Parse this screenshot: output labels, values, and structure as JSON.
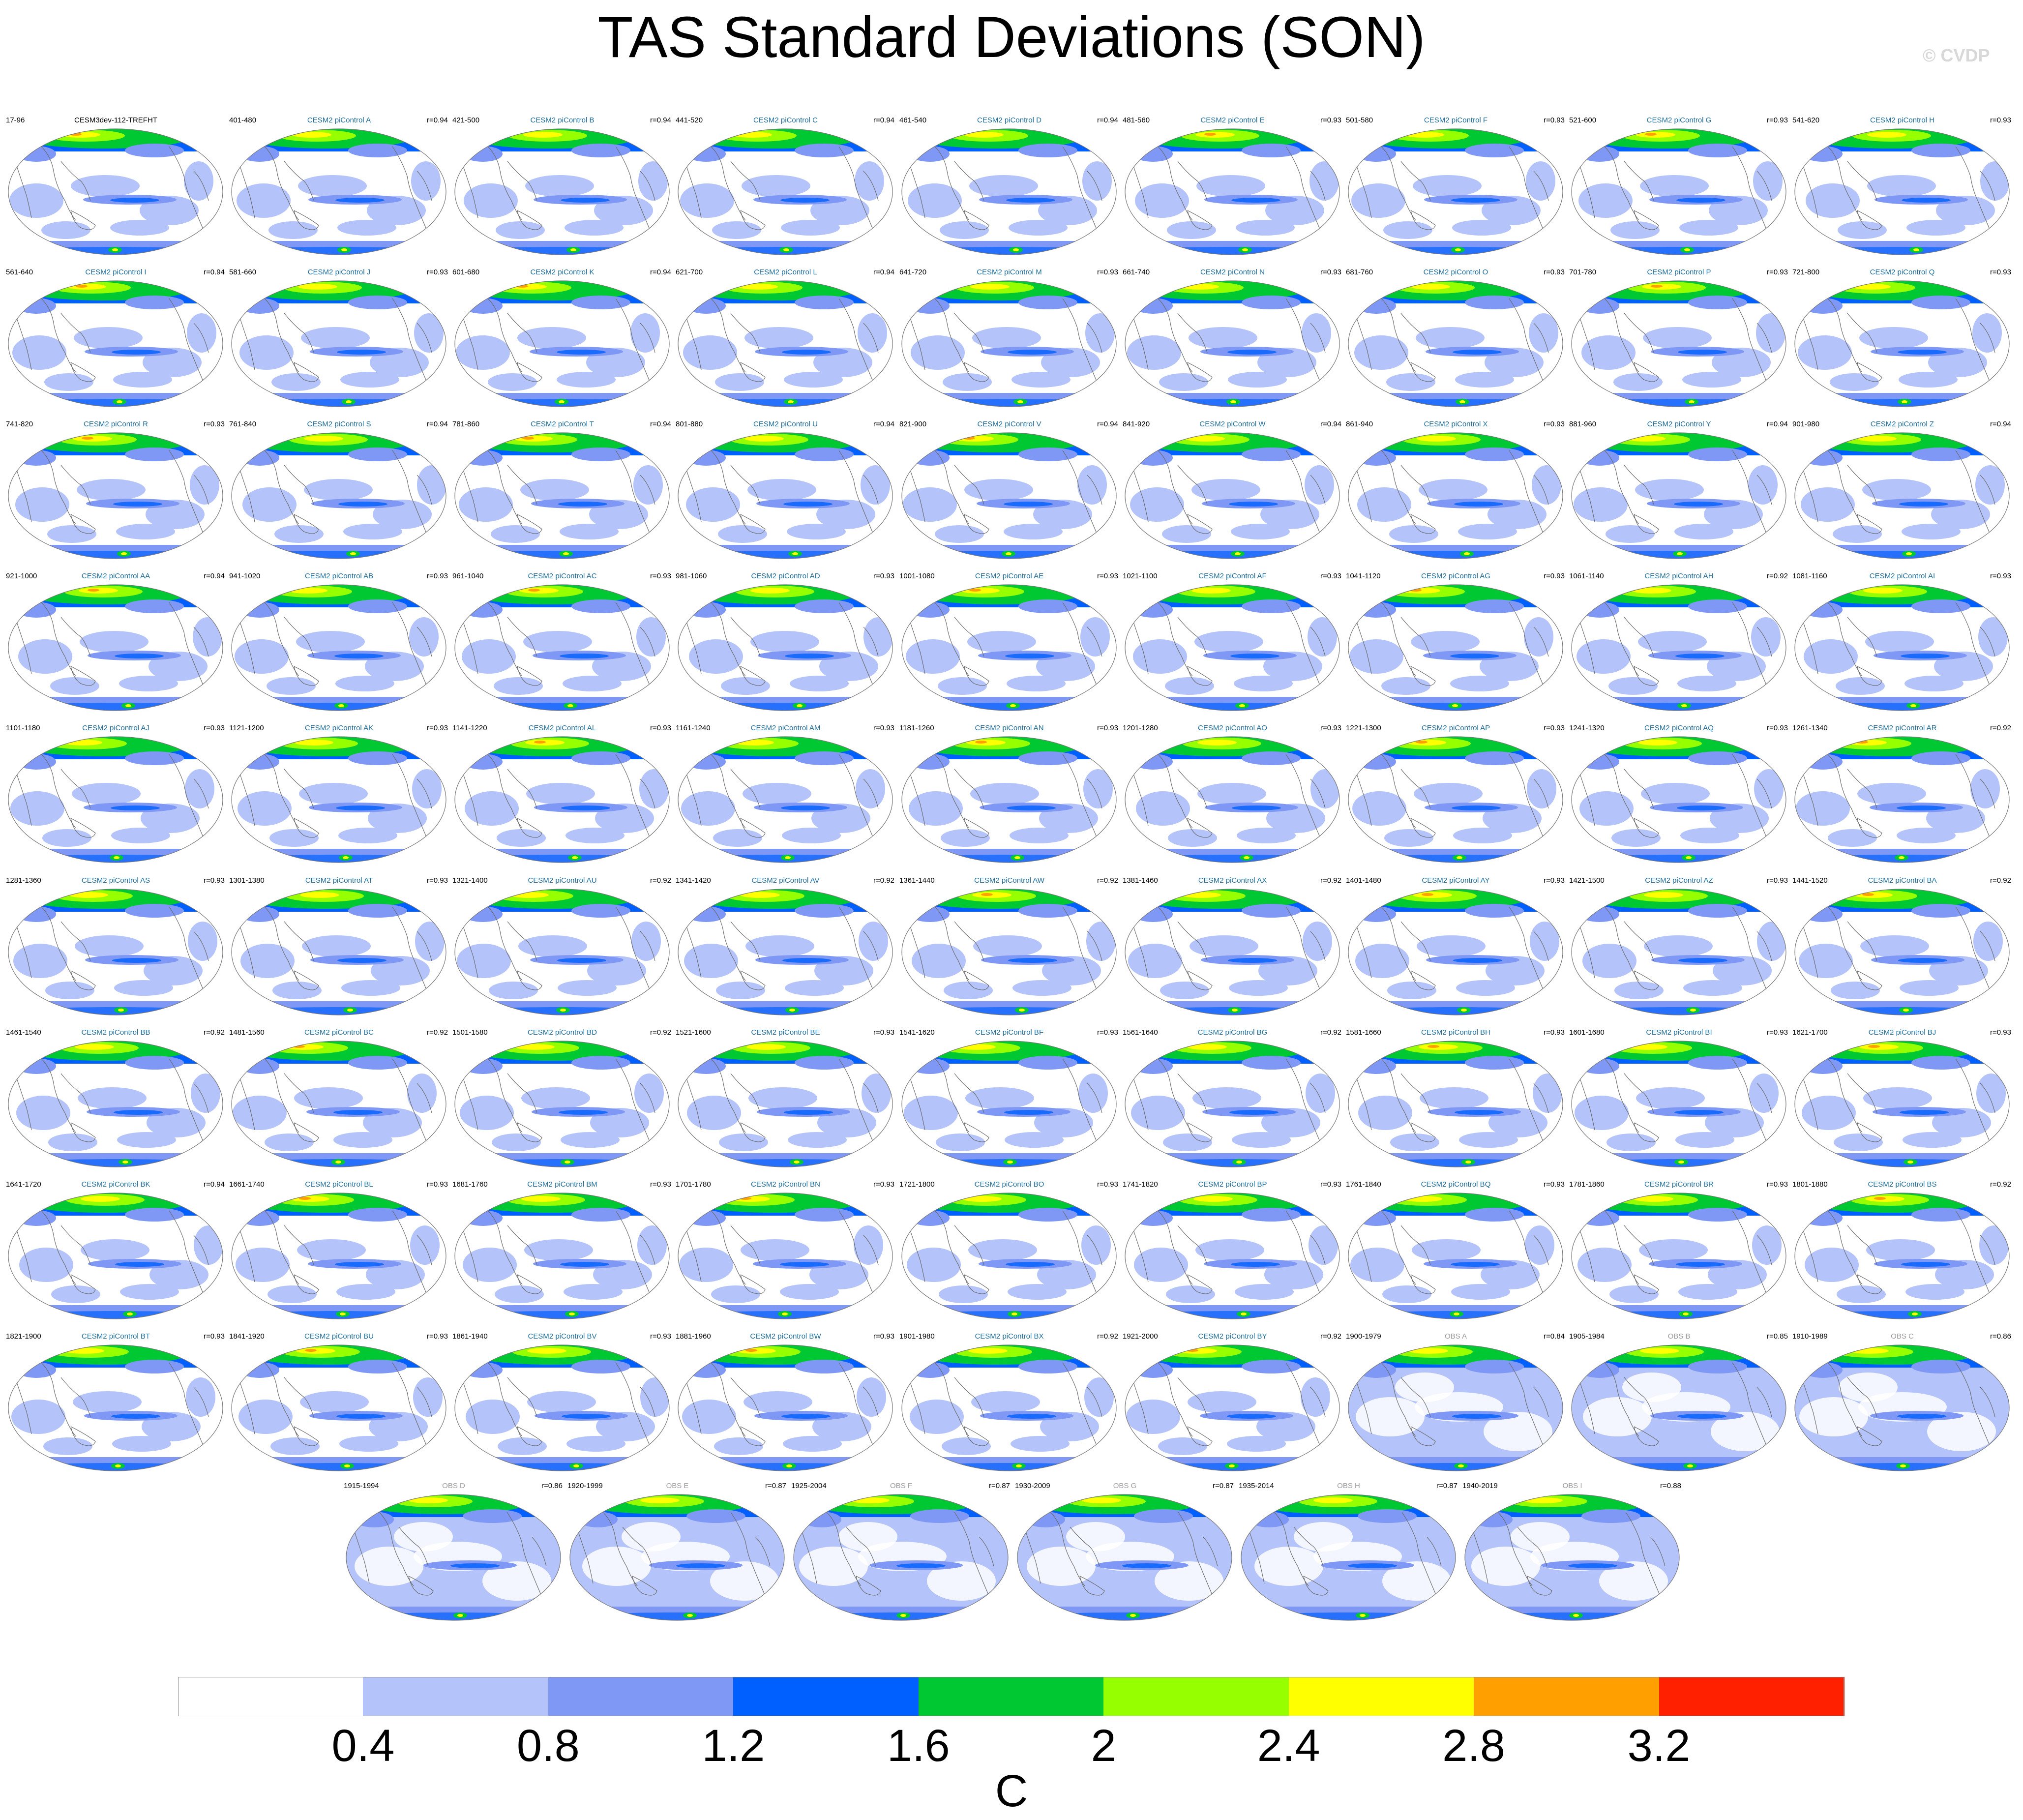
{
  "chart_data": {
    "type": "heatmap",
    "title": "TAS Standard Deviations (SON)",
    "watermark": "© CVDP",
    "colorbar": {
      "unit": "C",
      "ticks": [
        "0.4",
        "0.8",
        "1.2",
        "1.6",
        "2",
        "2.4",
        "2.8",
        "3.2"
      ],
      "levels": [
        0.4,
        0.8,
        1.2,
        1.6,
        2.0,
        2.4,
        2.8,
        3.2
      ],
      "colors": [
        "#ffffff",
        "#b4c4fa",
        "#7f98f5",
        "#0060ff",
        "#00c832",
        "#96ff00",
        "#ffff00",
        "#ffa000",
        "#ff2000"
      ]
    },
    "panels": [
      {
        "name": "CESM3dev-112-TREFHT",
        "years": "17-96",
        "r": "",
        "kind": "ref"
      },
      {
        "name": "CESM2 piControl A",
        "years": "401-480",
        "r": "r=0.94",
        "kind": "model"
      },
      {
        "name": "CESM2 piControl B",
        "years": "421-500",
        "r": "r=0.94",
        "kind": "model"
      },
      {
        "name": "CESM2 piControl C",
        "years": "441-520",
        "r": "r=0.94",
        "kind": "model"
      },
      {
        "name": "CESM2 piControl D",
        "years": "461-540",
        "r": "r=0.94",
        "kind": "model"
      },
      {
        "name": "CESM2 piControl E",
        "years": "481-560",
        "r": "r=0.93",
        "kind": "model"
      },
      {
        "name": "CESM2 piControl F",
        "years": "501-580",
        "r": "r=0.93",
        "kind": "model"
      },
      {
        "name": "CESM2 piControl G",
        "years": "521-600",
        "r": "r=0.93",
        "kind": "model"
      },
      {
        "name": "CESM2 piControl H",
        "years": "541-620",
        "r": "r=0.93",
        "kind": "model"
      },
      {
        "name": "CESM2 piControl I",
        "years": "561-640",
        "r": "r=0.94",
        "kind": "model"
      },
      {
        "name": "CESM2 piControl J",
        "years": "581-660",
        "r": "r=0.93",
        "kind": "model"
      },
      {
        "name": "CESM2 piControl K",
        "years": "601-680",
        "r": "r=0.94",
        "kind": "model"
      },
      {
        "name": "CESM2 piControl L",
        "years": "621-700",
        "r": "r=0.94",
        "kind": "model"
      },
      {
        "name": "CESM2 piControl M",
        "years": "641-720",
        "r": "r=0.93",
        "kind": "model"
      },
      {
        "name": "CESM2 piControl N",
        "years": "661-740",
        "r": "r=0.93",
        "kind": "model"
      },
      {
        "name": "CESM2 piControl O",
        "years": "681-760",
        "r": "r=0.93",
        "kind": "model"
      },
      {
        "name": "CESM2 piControl P",
        "years": "701-780",
        "r": "r=0.93",
        "kind": "model"
      },
      {
        "name": "CESM2 piControl Q",
        "years": "721-800",
        "r": "r=0.93",
        "kind": "model"
      },
      {
        "name": "CESM2 piControl R",
        "years": "741-820",
        "r": "r=0.93",
        "kind": "model"
      },
      {
        "name": "CESM2 piControl S",
        "years": "761-840",
        "r": "r=0.94",
        "kind": "model"
      },
      {
        "name": "CESM2 piControl T",
        "years": "781-860",
        "r": "r=0.94",
        "kind": "model"
      },
      {
        "name": "CESM2 piControl U",
        "years": "801-880",
        "r": "r=0.94",
        "kind": "model"
      },
      {
        "name": "CESM2 piControl V",
        "years": "821-900",
        "r": "r=0.94",
        "kind": "model"
      },
      {
        "name": "CESM2 piControl W",
        "years": "841-920",
        "r": "r=0.94",
        "kind": "model"
      },
      {
        "name": "CESM2 piControl X",
        "years": "861-940",
        "r": "r=0.93",
        "kind": "model"
      },
      {
        "name": "CESM2 piControl Y",
        "years": "881-960",
        "r": "r=0.94",
        "kind": "model"
      },
      {
        "name": "CESM2 piControl Z",
        "years": "901-980",
        "r": "r=0.94",
        "kind": "model"
      },
      {
        "name": "CESM2 piControl AA",
        "years": "921-1000",
        "r": "r=0.94",
        "kind": "model"
      },
      {
        "name": "CESM2 piControl AB",
        "years": "941-1020",
        "r": "r=0.93",
        "kind": "model"
      },
      {
        "name": "CESM2 piControl AC",
        "years": "961-1040",
        "r": "r=0.93",
        "kind": "model"
      },
      {
        "name": "CESM2 piControl AD",
        "years": "981-1060",
        "r": "r=0.93",
        "kind": "model"
      },
      {
        "name": "CESM2 piControl AE",
        "years": "1001-1080",
        "r": "r=0.93",
        "kind": "model"
      },
      {
        "name": "CESM2 piControl AF",
        "years": "1021-1100",
        "r": "r=0.93",
        "kind": "model"
      },
      {
        "name": "CESM2 piControl AG",
        "years": "1041-1120",
        "r": "r=0.93",
        "kind": "model"
      },
      {
        "name": "CESM2 piControl AH",
        "years": "1061-1140",
        "r": "r=0.92",
        "kind": "model"
      },
      {
        "name": "CESM2 piControl AI",
        "years": "1081-1160",
        "r": "r=0.93",
        "kind": "model"
      },
      {
        "name": "CESM2 piControl AJ",
        "years": "1101-1180",
        "r": "r=0.93",
        "kind": "model"
      },
      {
        "name": "CESM2 piControl AK",
        "years": "1121-1200",
        "r": "r=0.93",
        "kind": "model"
      },
      {
        "name": "CESM2 piControl AL",
        "years": "1141-1220",
        "r": "r=0.93",
        "kind": "model"
      },
      {
        "name": "CESM2 piControl AM",
        "years": "1161-1240",
        "r": "r=0.93",
        "kind": "model"
      },
      {
        "name": "CESM2 piControl AN",
        "years": "1181-1260",
        "r": "r=0.93",
        "kind": "model"
      },
      {
        "name": "CESM2 piControl AO",
        "years": "1201-1280",
        "r": "r=0.93",
        "kind": "model"
      },
      {
        "name": "CESM2 piControl AP",
        "years": "1221-1300",
        "r": "r=0.93",
        "kind": "model"
      },
      {
        "name": "CESM2 piControl AQ",
        "years": "1241-1320",
        "r": "r=0.93",
        "kind": "model"
      },
      {
        "name": "CESM2 piControl AR",
        "years": "1261-1340",
        "r": "r=0.92",
        "kind": "model"
      },
      {
        "name": "CESM2 piControl AS",
        "years": "1281-1360",
        "r": "r=0.93",
        "kind": "model"
      },
      {
        "name": "CESM2 piControl AT",
        "years": "1301-1380",
        "r": "r=0.93",
        "kind": "model"
      },
      {
        "name": "CESM2 piControl AU",
        "years": "1321-1400",
        "r": "r=0.92",
        "kind": "model"
      },
      {
        "name": "CESM2 piControl AV",
        "years": "1341-1420",
        "r": "r=0.92",
        "kind": "model"
      },
      {
        "name": "CESM2 piControl AW",
        "years": "1361-1440",
        "r": "r=0.92",
        "kind": "model"
      },
      {
        "name": "CESM2 piControl AX",
        "years": "1381-1460",
        "r": "r=0.92",
        "kind": "model"
      },
      {
        "name": "CESM2 piControl AY",
        "years": "1401-1480",
        "r": "r=0.93",
        "kind": "model"
      },
      {
        "name": "CESM2 piControl AZ",
        "years": "1421-1500",
        "r": "r=0.93",
        "kind": "model"
      },
      {
        "name": "CESM2 piControl BA",
        "years": "1441-1520",
        "r": "r=0.92",
        "kind": "model"
      },
      {
        "name": "CESM2 piControl BB",
        "years": "1461-1540",
        "r": "r=0.92",
        "kind": "model"
      },
      {
        "name": "CESM2 piControl BC",
        "years": "1481-1560",
        "r": "r=0.92",
        "kind": "model"
      },
      {
        "name": "CESM2 piControl BD",
        "years": "1501-1580",
        "r": "r=0.92",
        "kind": "model"
      },
      {
        "name": "CESM2 piControl BE",
        "years": "1521-1600",
        "r": "r=0.93",
        "kind": "model"
      },
      {
        "name": "CESM2 piControl BF",
        "years": "1541-1620",
        "r": "r=0.93",
        "kind": "model"
      },
      {
        "name": "CESM2 piControl BG",
        "years": "1561-1640",
        "r": "r=0.92",
        "kind": "model"
      },
      {
        "name": "CESM2 piControl BH",
        "years": "1581-1660",
        "r": "r=0.93",
        "kind": "model"
      },
      {
        "name": "CESM2 piControl BI",
        "years": "1601-1680",
        "r": "r=0.93",
        "kind": "model"
      },
      {
        "name": "CESM2 piControl BJ",
        "years": "1621-1700",
        "r": "r=0.93",
        "kind": "model"
      },
      {
        "name": "CESM2 piControl BK",
        "years": "1641-1720",
        "r": "r=0.94",
        "kind": "model"
      },
      {
        "name": "CESM2 piControl BL",
        "years": "1661-1740",
        "r": "r=0.93",
        "kind": "model"
      },
      {
        "name": "CESM2 piControl BM",
        "years": "1681-1760",
        "r": "r=0.93",
        "kind": "model"
      },
      {
        "name": "CESM2 piControl BN",
        "years": "1701-1780",
        "r": "r=0.93",
        "kind": "model"
      },
      {
        "name": "CESM2 piControl BO",
        "years": "1721-1800",
        "r": "r=0.93",
        "kind": "model"
      },
      {
        "name": "CESM2 piControl BP",
        "years": "1741-1820",
        "r": "r=0.93",
        "kind": "model"
      },
      {
        "name": "CESM2 piControl BQ",
        "years": "1761-1840",
        "r": "r=0.93",
        "kind": "model"
      },
      {
        "name": "CESM2 piControl BR",
        "years": "1781-1860",
        "r": "r=0.93",
        "kind": "model"
      },
      {
        "name": "CESM2 piControl BS",
        "years": "1801-1880",
        "r": "r=0.92",
        "kind": "model"
      },
      {
        "name": "CESM2 piControl BT",
        "years": "1821-1900",
        "r": "r=0.93",
        "kind": "model"
      },
      {
        "name": "CESM2 piControl BU",
        "years": "1841-1920",
        "r": "r=0.93",
        "kind": "model"
      },
      {
        "name": "CESM2 piControl BV",
        "years": "1861-1940",
        "r": "r=0.93",
        "kind": "model"
      },
      {
        "name": "CESM2 piControl BW",
        "years": "1881-1960",
        "r": "r=0.93",
        "kind": "model"
      },
      {
        "name": "CESM2 piControl BX",
        "years": "1901-1980",
        "r": "r=0.92",
        "kind": "model"
      },
      {
        "name": "CESM2 piControl BY",
        "years": "1921-2000",
        "r": "r=0.92",
        "kind": "model"
      },
      {
        "name": "OBS A",
        "years": "1900-1979",
        "r": "r=0.84",
        "kind": "obs"
      },
      {
        "name": "OBS B",
        "years": "1905-1984",
        "r": "r=0.85",
        "kind": "obs"
      },
      {
        "name": "OBS C",
        "years": "1910-1989",
        "r": "r=0.86",
        "kind": "obs"
      },
      {
        "name": "OBS D",
        "years": "1915-1994",
        "r": "r=0.86",
        "kind": "obs"
      },
      {
        "name": "OBS E",
        "years": "1920-1999",
        "r": "r=0.87",
        "kind": "obs"
      },
      {
        "name": "OBS F",
        "years": "1925-2004",
        "r": "r=0.87",
        "kind": "obs"
      },
      {
        "name": "OBS G",
        "years": "1930-2009",
        "r": "r=0.87",
        "kind": "obs"
      },
      {
        "name": "OBS H",
        "years": "1935-2014",
        "r": "r=0.87",
        "kind": "obs"
      },
      {
        "name": "OBS I",
        "years": "1940-2019",
        "r": "r=0.88",
        "kind": "obs"
      }
    ],
    "label_colors": {
      "ref": "#000000",
      "model": "#1f6e9a",
      "obs": "#9a9a9a"
    }
  }
}
